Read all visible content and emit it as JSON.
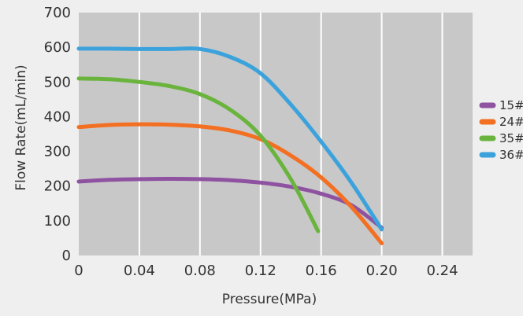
{
  "chart_data": {
    "type": "line",
    "title": "",
    "xlabel": "Pressure(MPa)",
    "ylabel": "Flow Rate(mL/min)",
    "xlim": [
      0,
      0.26
    ],
    "ylim": [
      0,
      700
    ],
    "x_ticks": [
      0,
      0.04,
      0.08,
      0.12,
      0.16,
      0.2,
      0.24
    ],
    "x_tick_labels": [
      "0",
      "0.04",
      "0.08",
      "0.12",
      "0.16",
      "0.20",
      "0.24"
    ],
    "y_ticks": [
      0,
      100,
      200,
      300,
      400,
      500,
      600,
      700
    ],
    "y_tick_labels": [
      "0",
      "100",
      "200",
      "300",
      "400",
      "500",
      "600",
      "700"
    ],
    "grid": "vertical",
    "legend_position": "right",
    "background_color": "#c8c8c8",
    "series": [
      {
        "name": "15#",
        "color": "#8e52a1",
        "x": [
          0,
          0.02,
          0.04,
          0.06,
          0.08,
          0.1,
          0.12,
          0.14,
          0.16,
          0.18,
          0.2
        ],
        "y": [
          213,
          218,
          220,
          221,
          220,
          217,
          210,
          198,
          178,
          145,
          80
        ]
      },
      {
        "name": "24#",
        "color": "#f36f21",
        "x": [
          0,
          0.02,
          0.04,
          0.06,
          0.08,
          0.1,
          0.12,
          0.14,
          0.16,
          0.18,
          0.2
        ],
        "y": [
          370,
          376,
          378,
          377,
          372,
          360,
          335,
          288,
          225,
          140,
          35
        ]
      },
      {
        "name": "35#",
        "color": "#6ab43e",
        "x": [
          0,
          0.02,
          0.04,
          0.06,
          0.08,
          0.1,
          0.12,
          0.14,
          0.158
        ],
        "y": [
          510,
          508,
          500,
          488,
          465,
          420,
          345,
          220,
          70
        ]
      },
      {
        "name": "36#",
        "color": "#3ca2dc",
        "x": [
          0,
          0.02,
          0.04,
          0.06,
          0.08,
          0.1,
          0.12,
          0.14,
          0.16,
          0.18,
          0.2
        ],
        "y": [
          596,
          596,
          595,
          595,
          595,
          572,
          525,
          435,
          328,
          210,
          75
        ]
      }
    ]
  }
}
